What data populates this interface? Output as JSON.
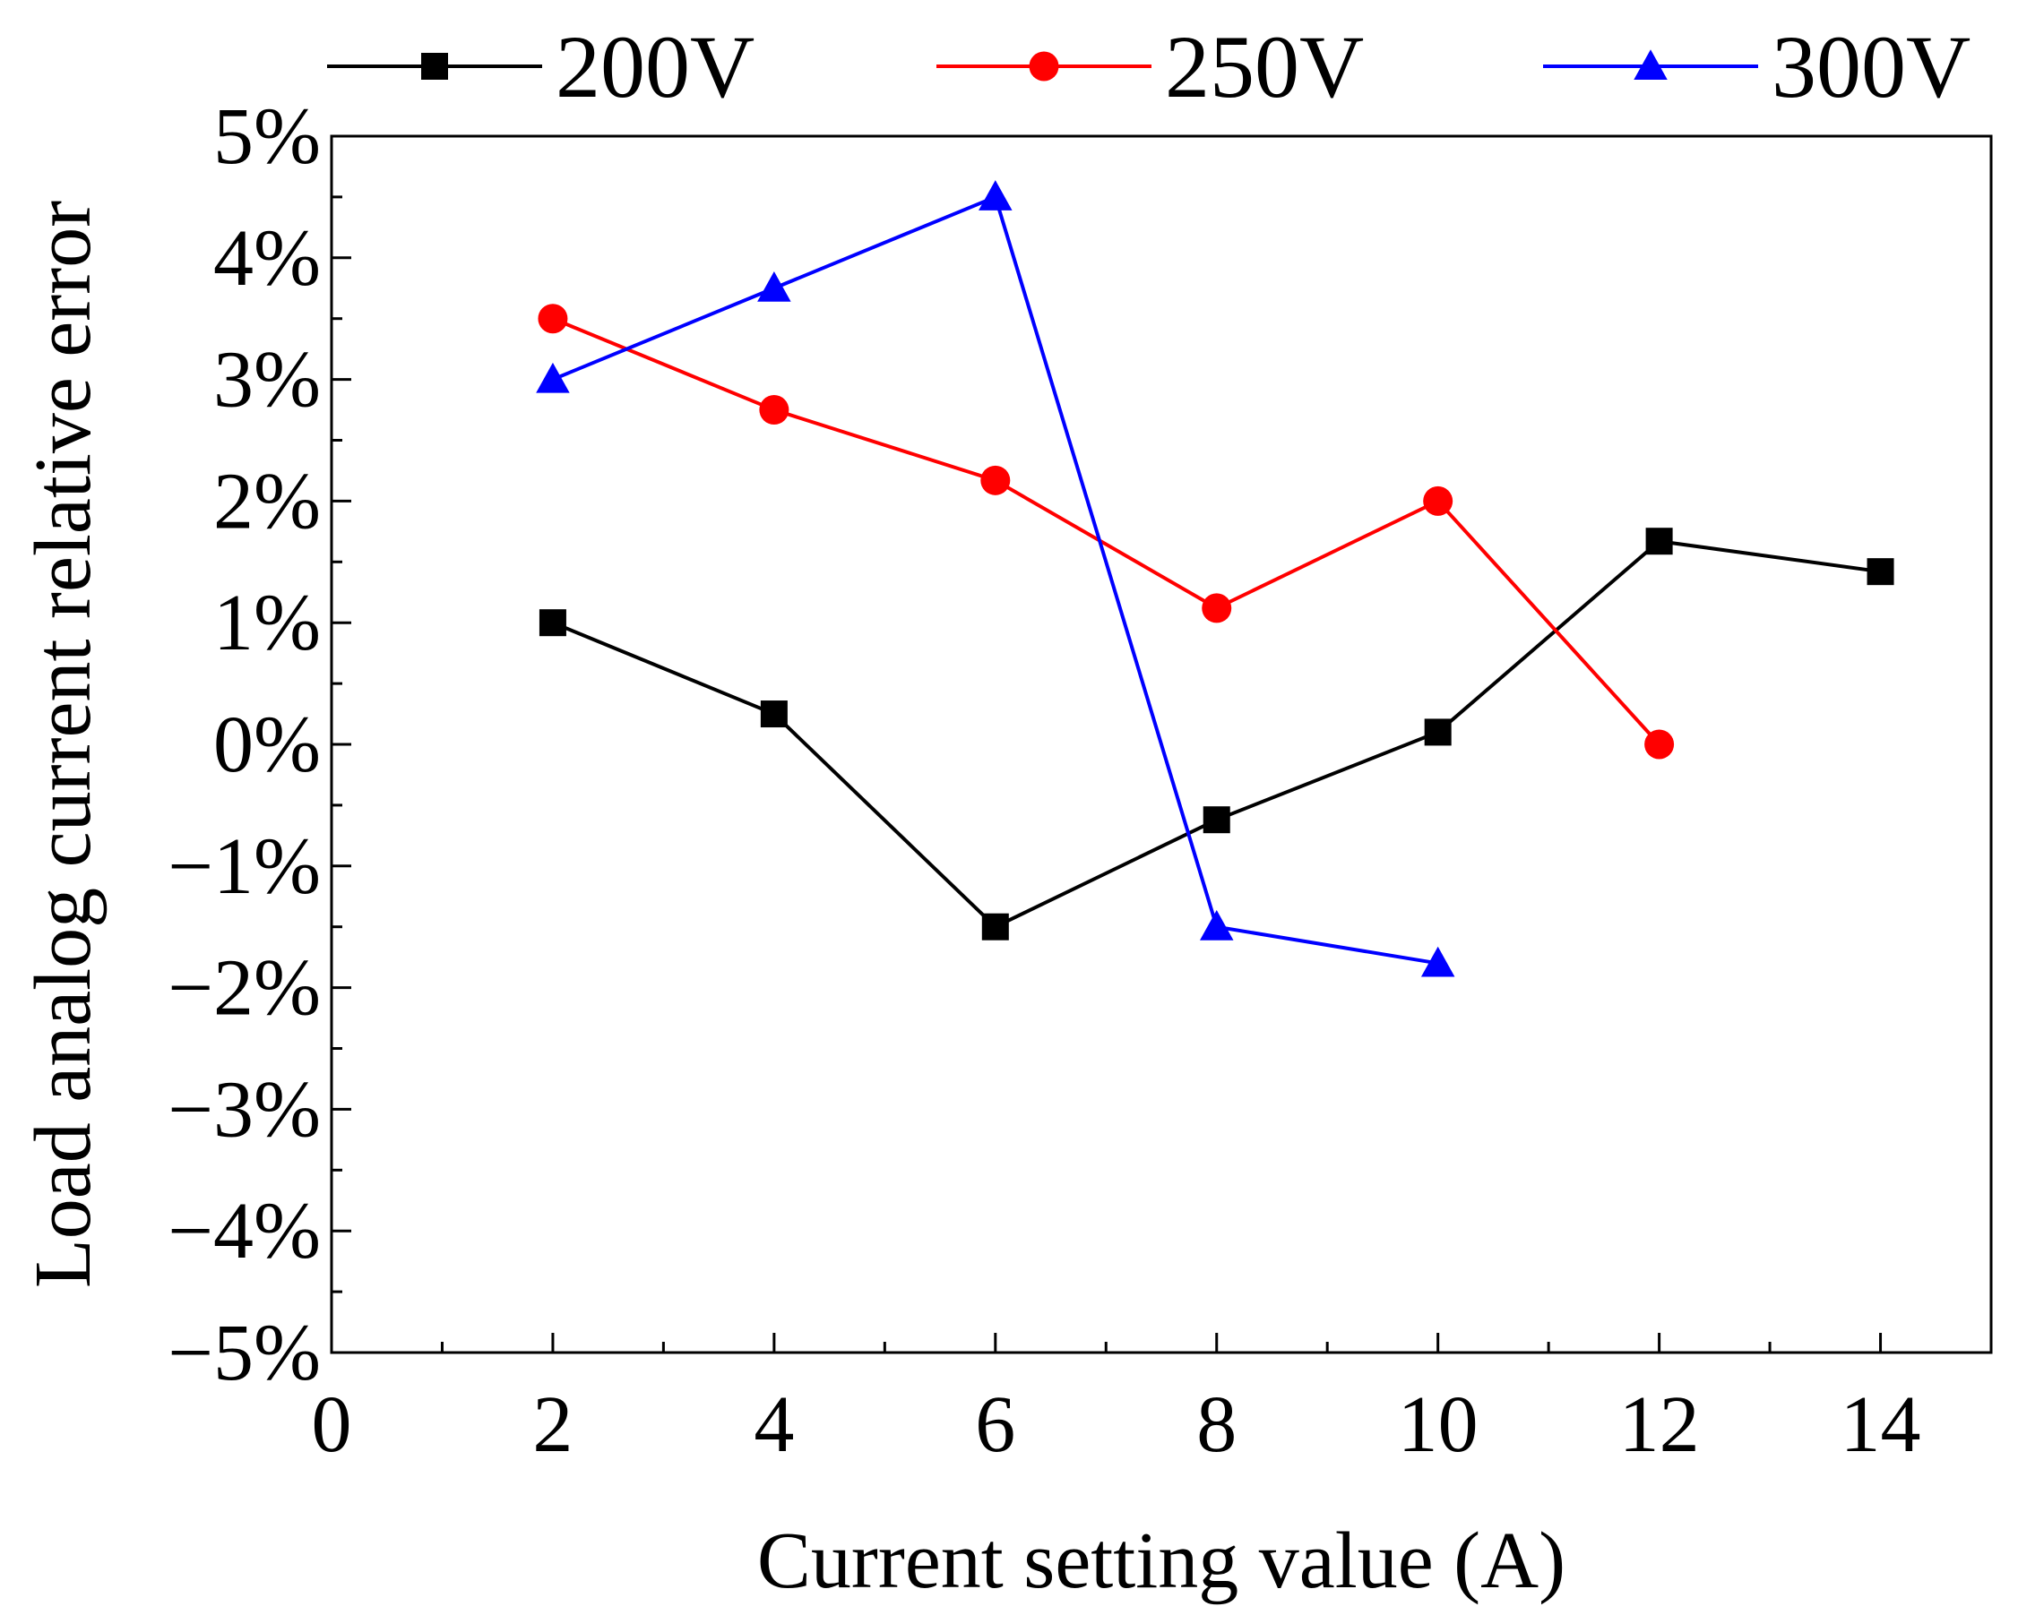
{
  "chart_data": {
    "type": "line",
    "title": "",
    "xlabel": "Current setting value (A)",
    "ylabel": "Load analog current relative error",
    "xlim": [
      0,
      15
    ],
    "ylim": [
      -5,
      5
    ],
    "x_ticks": [
      0,
      2,
      4,
      6,
      8,
      10,
      12,
      14
    ],
    "x_tick_labels": [
      "0",
      "2",
      "4",
      "6",
      "8",
      "10",
      "12",
      "14"
    ],
    "y_ticks": [
      -5,
      -4,
      -3,
      -2,
      -1,
      0,
      1,
      2,
      3,
      4,
      5
    ],
    "y_tick_labels": [
      "−5%",
      "−4%",
      "−3%",
      "−2%",
      "−1%",
      "0%",
      "1%",
      "2%",
      "3%",
      "4%",
      "5%"
    ],
    "legend_position": "top",
    "series": [
      {
        "name": "200V",
        "color": "#000000",
        "marker": "square",
        "x": [
          2,
          4,
          6,
          8,
          10,
          12,
          14
        ],
        "y": [
          1.0,
          0.25,
          -1.5,
          -0.62,
          0.1,
          1.67,
          1.42
        ]
      },
      {
        "name": "250V",
        "color": "#ff0000",
        "marker": "circle",
        "x": [
          2,
          4,
          6,
          8,
          10,
          12
        ],
        "y": [
          3.5,
          2.75,
          2.17,
          1.12,
          2.0,
          0.0
        ]
      },
      {
        "name": "300V",
        "color": "#0000ff",
        "marker": "triangle",
        "x": [
          2,
          4,
          6,
          8,
          10
        ],
        "y": [
          3.0,
          3.75,
          4.5,
          -1.5,
          -1.8
        ]
      }
    ]
  }
}
